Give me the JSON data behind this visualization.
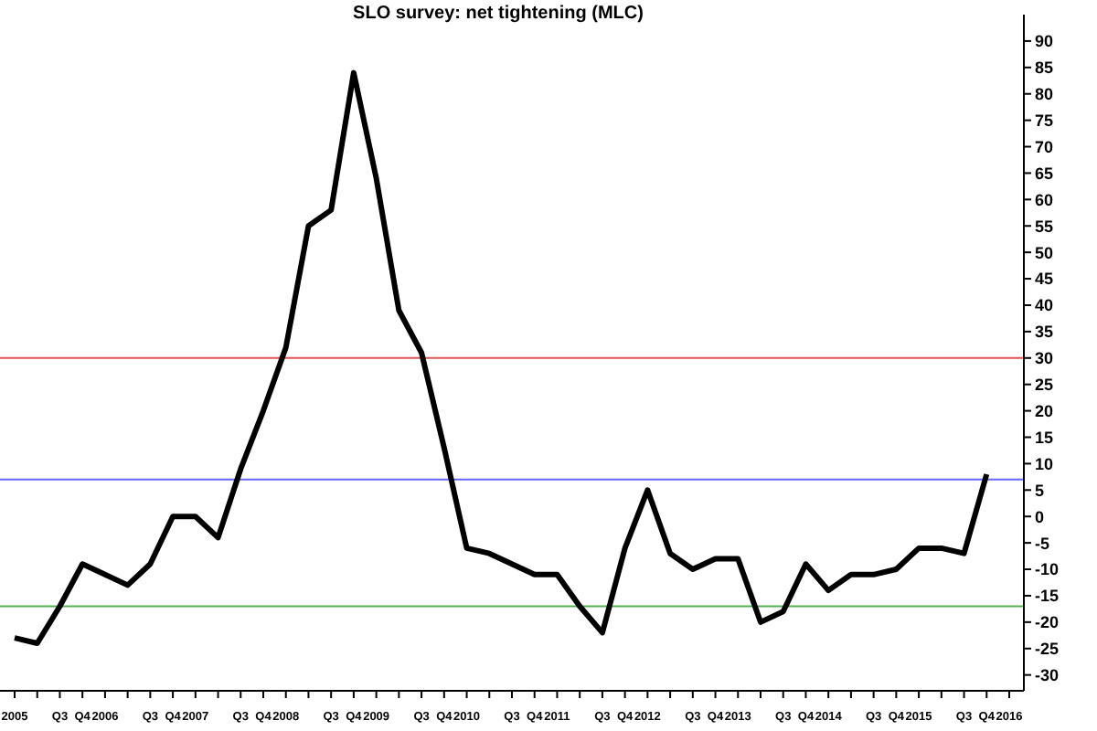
{
  "chart_data": {
    "type": "line",
    "title": "SLO survey: net tightening (MLC)",
    "categories": [
      "2005",
      null,
      "Q3",
      "Q4",
      "2006",
      null,
      "Q3",
      "Q4",
      "2007",
      null,
      "Q3",
      "Q4",
      "2008",
      null,
      "Q3",
      "Q4",
      "2009",
      null,
      "Q3",
      "Q4",
      "2010",
      null,
      "Q3",
      "Q4",
      "2011",
      null,
      "Q3",
      "Q4",
      "2012",
      null,
      "Q3",
      "Q4",
      "2013",
      null,
      "Q3",
      "Q4",
      "2014",
      null,
      "Q3",
      "Q4",
      "2015",
      null,
      "Q3",
      "Q4",
      "2016"
    ],
    "series": [
      {
        "color": "#000000",
        "values": [
          -23,
          -24,
          -17,
          -9,
          -11,
          -13,
          -9,
          0,
          0,
          -4,
          9,
          20,
          32,
          55,
          58,
          84,
          64,
          39,
          31,
          13,
          -6,
          -7,
          -9,
          -11,
          -11,
          -17,
          -22,
          -6,
          5,
          -7,
          -10,
          -8,
          -8,
          -20,
          -18,
          -9,
          -14,
          -11,
          -11,
          -10,
          -6,
          -6,
          -7,
          8,
          null
        ]
      }
    ],
    "ylim": [
      -33,
      95
    ],
    "yticks": [
      -30,
      -25,
      -20,
      -15,
      -10,
      -5,
      0,
      5,
      10,
      15,
      20,
      25,
      30,
      35,
      40,
      45,
      50,
      55,
      60,
      65,
      70,
      75,
      80,
      85,
      90
    ],
    "ref_lines": [
      {
        "axis": "y",
        "value": 30,
        "color": "#e05555"
      },
      {
        "axis": "y",
        "value": 7,
        "color": "#6666ff"
      },
      {
        "axis": "y",
        "value": -17,
        "color": "#55b055"
      }
    ],
    "grid": false,
    "legend": false,
    "marker": "none",
    "line_style": "solid"
  }
}
